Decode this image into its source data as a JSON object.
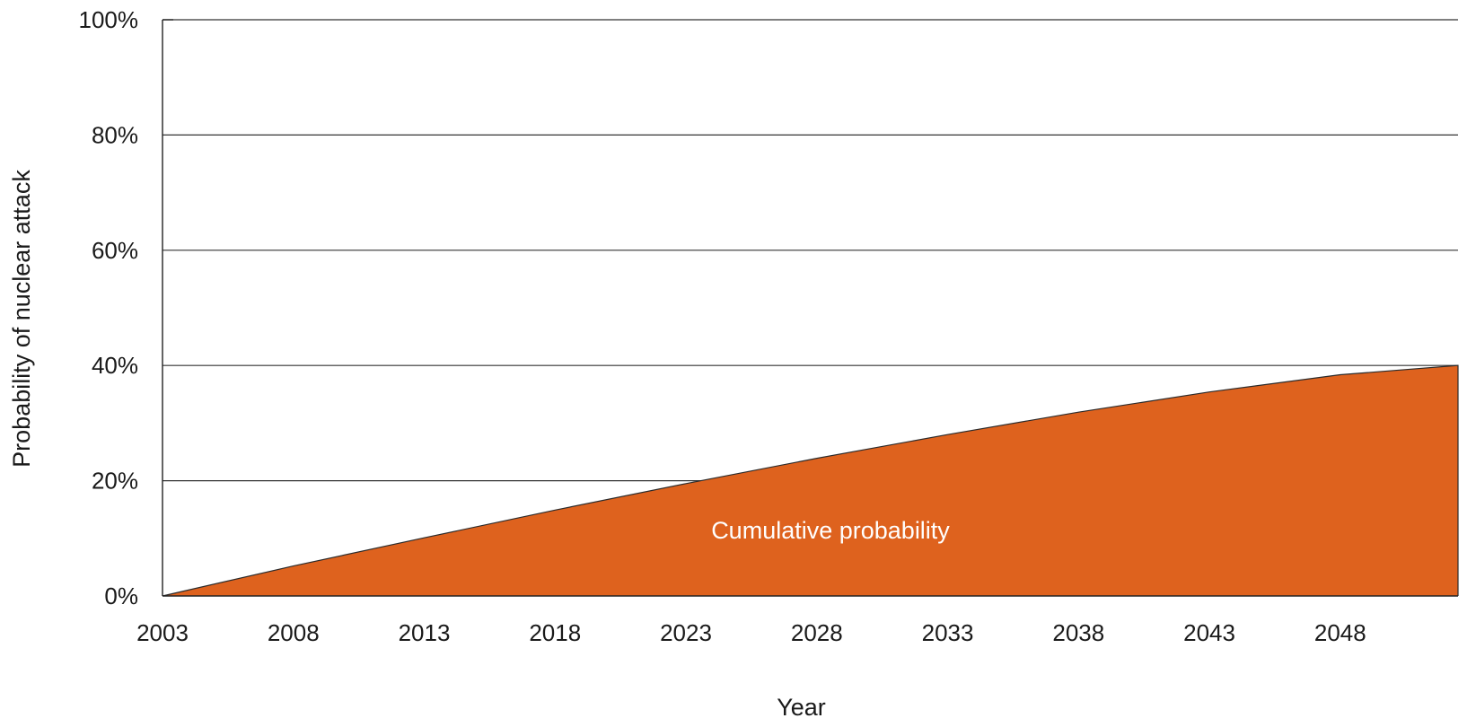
{
  "chart_data": {
    "type": "area",
    "title": "",
    "xlabel": "Year",
    "ylabel": "Probability of nuclear attack",
    "x_tick_labels": [
      "2003",
      "2008",
      "2013",
      "2018",
      "2023",
      "2028",
      "2033",
      "2038",
      "2043",
      "2048"
    ],
    "y_tick_labels": [
      "0%",
      "20%",
      "40%",
      "60%",
      "80%",
      "100%"
    ],
    "y_tick_values": [
      0,
      20,
      40,
      60,
      80,
      100
    ],
    "xlim": [
      2003,
      2052.5
    ],
    "ylim": [
      0,
      100
    ],
    "grid": "horizontal",
    "fill_color": "#de621e",
    "annotation": "Cumulative probability",
    "series": [
      {
        "x": [
          2003,
          2008,
          2013,
          2018,
          2023,
          2028,
          2033,
          2038,
          2043,
          2048,
          2052.5
        ],
        "values": [
          0,
          5.2,
          10.1,
          14.9,
          19.5,
          23.9,
          28.0,
          31.9,
          35.4,
          38.4,
          40.0
        ]
      }
    ]
  }
}
